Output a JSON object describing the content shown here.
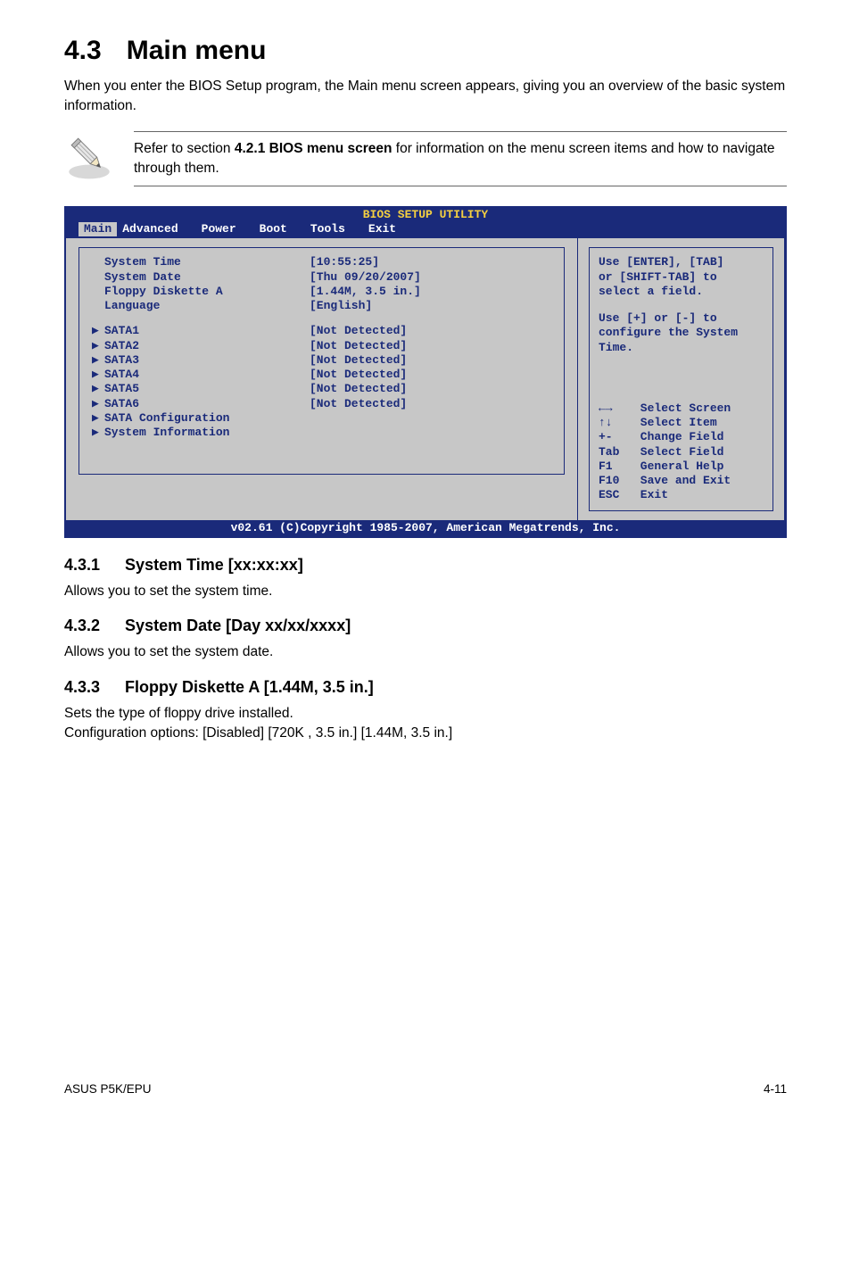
{
  "heading": {
    "num": "4.3",
    "title": "Main menu"
  },
  "intro": "When you enter the BIOS Setup program, the Main menu screen appears, giving you an overview of the basic system information.",
  "note": {
    "text_before": "Refer to section ",
    "bold": "4.2.1  BIOS menu screen",
    "text_after": " for information on the menu screen items and how to navigate through them."
  },
  "bios": {
    "title": "BIOS SETUP UTILITY",
    "tabs": [
      "Main",
      "Advanced",
      "Power",
      "Boot",
      "Tools",
      "Exit"
    ],
    "active_tab": "Main",
    "left_rows_top": [
      {
        "label": "System Time",
        "value": "[10:55:25]",
        "arrow": false
      },
      {
        "label": "System Date",
        "value": "[Thu 09/20/2007]",
        "arrow": false
      },
      {
        "label": "Floppy Diskette A",
        "value": "[1.44M, 3.5 in.]",
        "arrow": false
      },
      {
        "label": "Language",
        "value": "[English]",
        "arrow": false
      }
    ],
    "left_rows_mid": [
      {
        "label": "SATA1",
        "value": "[Not Detected]",
        "arrow": true
      },
      {
        "label": "SATA2",
        "value": "[Not Detected]",
        "arrow": true
      },
      {
        "label": "SATA3",
        "value": "[Not Detected]",
        "arrow": true
      },
      {
        "label": "SATA4",
        "value": "[Not Detected]",
        "arrow": true
      },
      {
        "label": "SATA5",
        "value": "[Not Detected]",
        "arrow": true
      },
      {
        "label": "SATA6",
        "value": "[Not Detected]",
        "arrow": true
      }
    ],
    "left_rows_bot": [
      {
        "label": "SATA Configuration",
        "value": "",
        "arrow": true
      },
      {
        "label": "System Information",
        "value": "",
        "arrow": true
      }
    ],
    "help_top": "Use [ENTER], [TAB]\nor [SHIFT-TAB] to\nselect a field.",
    "help_mid": "Use [+] or [-] to\nconfigure the System\nTime.",
    "keys": [
      {
        "k": "←→",
        "d": "Select Screen"
      },
      {
        "k": "↑↓",
        "d": "Select Item"
      },
      {
        "k": "+-",
        "d": "Change Field"
      },
      {
        "k": "Tab",
        "d": "Select Field"
      },
      {
        "k": "F1",
        "d": "General Help"
      },
      {
        "k": "F10",
        "d": "Save and Exit"
      },
      {
        "k": "ESC",
        "d": "Exit"
      }
    ],
    "footer": "v02.61 (C)Copyright 1985-2007, American Megatrends, Inc."
  },
  "subs": [
    {
      "num": "4.3.1",
      "title": "System Time [xx:xx:xx]",
      "body": "Allows you to set the system time."
    },
    {
      "num": "4.3.2",
      "title": "System Date [Day xx/xx/xxxx]",
      "body": "Allows you to set the system date."
    },
    {
      "num": "4.3.3",
      "title": "Floppy Diskette A [1.44M, 3.5 in.]",
      "body": "Sets the type of floppy drive installed.\nConfiguration options: [Disabled] [720K , 3.5 in.] [1.44M, 3.5 in.]"
    }
  ],
  "footer": {
    "left": "ASUS P5K/EPU",
    "right": "4-11"
  },
  "colors": {
    "bios_bg": "#c7c7c7",
    "bios_blue": "#1a2a7a",
    "bios_yellow": "#f5d040",
    "bios_white": "#ffffff"
  }
}
